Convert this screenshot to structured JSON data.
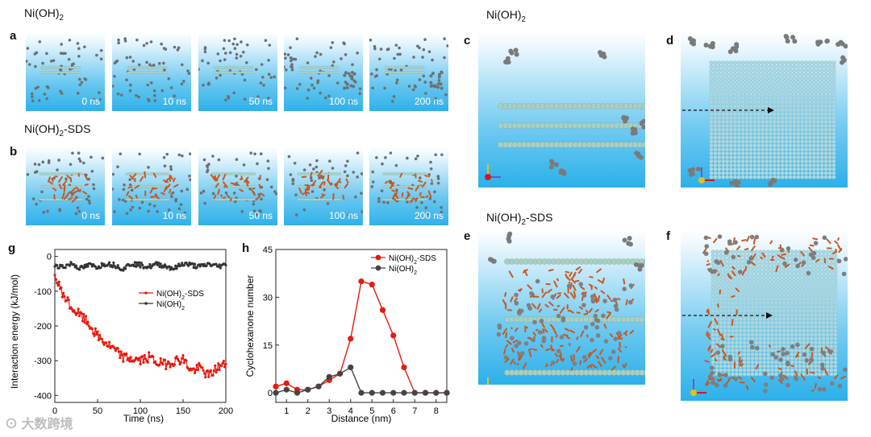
{
  "labels": {
    "a": "a",
    "b": "b",
    "c": "c",
    "d": "d",
    "e": "e",
    "f": "f",
    "g": "g",
    "h": "h"
  },
  "titles": {
    "row_a": "Ni(OH)2",
    "row_b": "Ni(OH)2-SDS",
    "right_top": "Ni(OH)2",
    "right_bottom": "Ni(OH)2-SDS"
  },
  "snapshots": {
    "times": [
      "0 ns",
      "10 ns",
      "50 ns",
      "100 ns",
      "200 ns"
    ]
  },
  "watermark": "大数跨境",
  "chart_data": [
    {
      "id": "g",
      "type": "line",
      "xlabel": "Time (ns)",
      "ylabel": "Interaction energy (kJ/mol)",
      "xlim": [
        0,
        200
      ],
      "ylim": [
        -420,
        20
      ],
      "xticks": [
        0,
        50,
        100,
        150,
        200
      ],
      "yticks": [
        0,
        -100,
        -200,
        -300,
        -400
      ],
      "legend_position": "center",
      "series": [
        {
          "name": "Ni(OH)2-SDS",
          "color": "#e8190d",
          "x": [
            0,
            10,
            20,
            30,
            40,
            50,
            60,
            70,
            80,
            90,
            100,
            110,
            120,
            130,
            140,
            150,
            160,
            170,
            180,
            190,
            200
          ],
          "y": [
            -60,
            -110,
            -150,
            -170,
            -195,
            -230,
            -250,
            -270,
            -290,
            -295,
            -300,
            -290,
            -305,
            -310,
            -300,
            -295,
            -330,
            -320,
            -345,
            -320,
            -310
          ]
        },
        {
          "name": "Ni(OH)2",
          "color": "#333333",
          "x": [
            0,
            10,
            20,
            30,
            40,
            50,
            60,
            70,
            80,
            90,
            100,
            110,
            120,
            130,
            140,
            150,
            160,
            170,
            180,
            190,
            200
          ],
          "y": [
            -25,
            -30,
            -20,
            -35,
            -25,
            -30,
            -20,
            -25,
            -35,
            -20,
            -25,
            -30,
            -22,
            -28,
            -35,
            -20,
            -25,
            -30,
            -22,
            -28,
            -25
          ]
        }
      ]
    },
    {
      "id": "h",
      "type": "line",
      "xlabel": "Distance (nm)",
      "ylabel": "Cyclohexanone number",
      "xlim": [
        0.5,
        8.5
      ],
      "ylim": [
        -3,
        45
      ],
      "xticks": [
        1,
        2,
        3,
        4,
        5,
        6,
        7,
        8
      ],
      "yticks": [
        0,
        15,
        30,
        45
      ],
      "legend_position": "top-right",
      "series": [
        {
          "name": "Ni(OH)2-SDS",
          "color": "#e8190d",
          "x": [
            0.5,
            1,
            1.5,
            2,
            2.5,
            3,
            3.5,
            4,
            4.5,
            5,
            5.5,
            6,
            6.5,
            7,
            7.5,
            8,
            8.5
          ],
          "y": [
            2,
            3,
            1,
            1,
            2,
            4,
            6,
            17,
            35,
            34,
            26,
            18,
            8,
            0,
            0,
            0,
            0
          ]
        },
        {
          "name": "Ni(OH)2",
          "color": "#444444",
          "x": [
            0.5,
            1,
            1.5,
            2,
            2.5,
            3,
            3.5,
            4,
            4.5,
            5,
            5.5,
            6,
            6.5,
            7,
            7.5,
            8,
            8.5
          ],
          "y": [
            0,
            1,
            0,
            1,
            2,
            5,
            6,
            8,
            0,
            0,
            0,
            0,
            0,
            0,
            0,
            0,
            0
          ]
        }
      ]
    }
  ]
}
